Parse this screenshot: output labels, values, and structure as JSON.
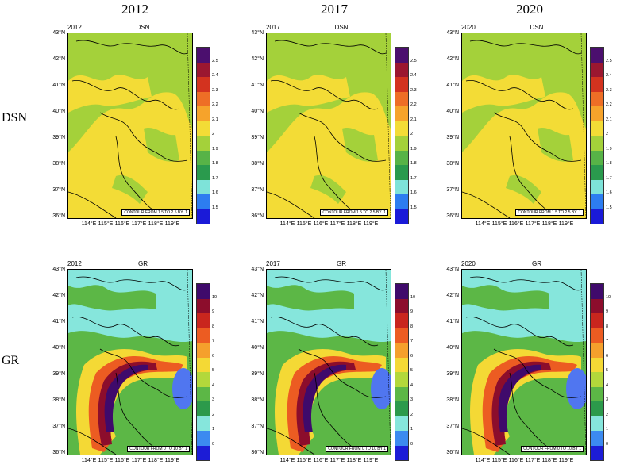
{
  "columns": [
    "2012",
    "2017",
    "2020"
  ],
  "rows": [
    "DSN",
    "GR"
  ],
  "panels": [
    {
      "year_label": "2012",
      "var_label": "DSN",
      "contour_note": "CONTOUR FROM 1.5 TO 2.5 BY .1"
    },
    {
      "year_label": "2017",
      "var_label": "DSN",
      "contour_note": "CONTOUR FROM 1.5 TO 2.5 BY .1"
    },
    {
      "year_label": "2020",
      "var_label": "DSN",
      "contour_note": "CONTOUR FROM 1.5 TO 2.5 BY .1"
    },
    {
      "year_label": "2012",
      "var_label": "GR",
      "contour_note": "CONTOUR FROM 0 TO 10 BY 1"
    },
    {
      "year_label": "2017",
      "var_label": "GR",
      "contour_note": "CONTOUR FROM 0 TO 10 BY 1"
    },
    {
      "year_label": "2020",
      "var_label": "GR",
      "contour_note": "CONTOUR FROM 0 TO 10 BY 1"
    }
  ],
  "lat_labels": [
    "43°N",
    "42°N",
    "41°N",
    "40°N",
    "39°N",
    "38°N",
    "37°N",
    "36°N"
  ],
  "lon_labels": [
    "114°E",
    "115°E",
    "116°E",
    "117°E",
    "118°E",
    "119°E"
  ],
  "dsn_colorbar": {
    "labels": [
      "2.5",
      "2.4",
      "2.3",
      "2.2",
      "2.1",
      "2",
      "1.9",
      "1.8",
      "1.7",
      "1.6",
      "1.5"
    ],
    "colors": [
      "#4b0f6e",
      "#9b1730",
      "#d3331f",
      "#ee6e26",
      "#f6a32b",
      "#f3dc36",
      "#a4d13a",
      "#57b347",
      "#2a9a4d",
      "#7ee3d9",
      "#2d7df0",
      "#1a1ad8"
    ]
  },
  "gr_colorbar": {
    "labels": [
      "10",
      "9",
      "8",
      "7",
      "6",
      "5",
      "4",
      "3",
      "2",
      "1",
      "0"
    ],
    "colors": [
      "#3f0a6b",
      "#8c0d2c",
      "#c9261e",
      "#ec5c22",
      "#f5a02c",
      "#f4d935",
      "#b3d83b",
      "#5cb746",
      "#2c9a4b",
      "#86e6dc",
      "#3c8af0",
      "#1c1cd6"
    ]
  },
  "map_colors": {
    "dsn_base": "#f3dc36",
    "dsn_green": "#a4d13a",
    "gr_base": "#86e6dc",
    "gr_green": "#5cb746",
    "gr_yellow": "#f4d935",
    "gr_orange": "#ec5c22",
    "gr_red": "#8c0d2c",
    "gr_purple": "#3f0a6b",
    "gr_blue": "#5076f0"
  }
}
